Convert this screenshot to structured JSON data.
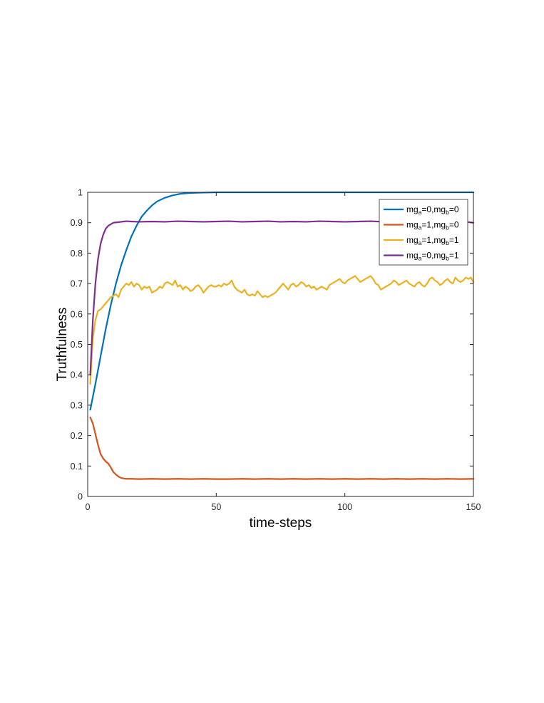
{
  "chart_data": {
    "type": "line",
    "title": "",
    "xlabel": "time-steps",
    "ylabel": "Truthfulness",
    "xlim": [
      0,
      150
    ],
    "ylim": [
      0,
      1
    ],
    "xticks": [
      0,
      50,
      100,
      150
    ],
    "yticks": [
      0,
      0.1,
      0.2,
      0.3,
      0.4,
      0.5,
      0.6,
      0.7,
      0.8,
      0.9,
      1
    ],
    "grid": false,
    "legend_position": "top-right",
    "series": [
      {
        "name": "mg_a=0,mg_b=0",
        "label_parts": [
          [
            "mg",
            ""
          ],
          [
            "a",
            "sub"
          ],
          [
            "=0,mg",
            ""
          ],
          [
            "b",
            "sub"
          ],
          [
            "=0",
            ""
          ]
        ],
        "color": "#0072BD",
        "x": [
          1,
          3,
          5,
          7,
          9,
          11,
          13,
          15,
          17,
          19,
          21,
          23,
          25,
          27,
          30,
          33,
          36,
          40,
          45,
          50,
          60,
          70,
          80,
          100,
          120,
          150
        ],
        "y": [
          0.285,
          0.37,
          0.46,
          0.55,
          0.63,
          0.7,
          0.76,
          0.81,
          0.855,
          0.89,
          0.92,
          0.94,
          0.957,
          0.97,
          0.982,
          0.99,
          0.995,
          0.998,
          0.999,
          1.0,
          1.0,
          1.0,
          1.0,
          1.0,
          1.0,
          1.0
        ]
      },
      {
        "name": "mg_a=1,mg_b=0",
        "label_parts": [
          [
            "mg",
            ""
          ],
          [
            "a",
            "sub"
          ],
          [
            "=1,mg",
            ""
          ],
          [
            "b",
            "sub"
          ],
          [
            "=0",
            ""
          ]
        ],
        "color": "#D95319",
        "x": [
          1,
          2,
          3,
          4,
          5,
          6,
          7,
          8,
          9,
          10,
          11,
          12,
          13,
          14,
          15,
          17,
          20,
          25,
          30,
          35,
          40,
          45,
          50,
          55,
          60,
          65,
          70,
          75,
          80,
          85,
          90,
          95,
          100,
          105,
          110,
          115,
          120,
          125,
          130,
          135,
          140,
          145,
          150
        ],
        "y": [
          0.26,
          0.24,
          0.205,
          0.17,
          0.14,
          0.125,
          0.115,
          0.108,
          0.095,
          0.08,
          0.072,
          0.065,
          0.061,
          0.059,
          0.058,
          0.058,
          0.057,
          0.058,
          0.057,
          0.058,
          0.057,
          0.058,
          0.057,
          0.057,
          0.058,
          0.057,
          0.058,
          0.057,
          0.058,
          0.057,
          0.058,
          0.057,
          0.058,
          0.057,
          0.058,
          0.057,
          0.058,
          0.057,
          0.058,
          0.057,
          0.058,
          0.057,
          0.058
        ]
      },
      {
        "name": "mg_a=1,mg_b=1",
        "label_parts": [
          [
            "mg",
            ""
          ],
          [
            "a",
            "sub"
          ],
          [
            "=1,mg",
            ""
          ],
          [
            "b",
            "sub"
          ],
          [
            "=1",
            ""
          ]
        ],
        "color": "#EDB120",
        "x": [
          1,
          2,
          3,
          4,
          5,
          6,
          7,
          8,
          9,
          10,
          11,
          12,
          13,
          14,
          15,
          16,
          17,
          18,
          19,
          20,
          21,
          22,
          23,
          24,
          25,
          26,
          27,
          28,
          29,
          30,
          31,
          32,
          33,
          34,
          35,
          36,
          37,
          38,
          39,
          40,
          41,
          42,
          43,
          44,
          45,
          46,
          47,
          48,
          49,
          50,
          51,
          52,
          53,
          54,
          55,
          56,
          57,
          58,
          59,
          60,
          61,
          62,
          63,
          64,
          65,
          66,
          67,
          68,
          69,
          70,
          71,
          72,
          73,
          74,
          75,
          76,
          77,
          78,
          79,
          80,
          81,
          82,
          83,
          84,
          85,
          86,
          87,
          88,
          89,
          90,
          91,
          92,
          93,
          94,
          95,
          96,
          97,
          98,
          99,
          100,
          101,
          102,
          103,
          104,
          105,
          106,
          107,
          108,
          109,
          110,
          111,
          112,
          113,
          114,
          115,
          116,
          117,
          118,
          119,
          120,
          121,
          122,
          123,
          124,
          125,
          126,
          127,
          128,
          129,
          130,
          131,
          132,
          133,
          134,
          135,
          136,
          137,
          138,
          139,
          140,
          141,
          142,
          143,
          144,
          145,
          146,
          147,
          148,
          149,
          150
        ],
        "y": [
          0.37,
          0.52,
          0.58,
          0.61,
          0.615,
          0.625,
          0.635,
          0.645,
          0.655,
          0.66,
          0.665,
          0.655,
          0.68,
          0.69,
          0.7,
          0.695,
          0.705,
          0.69,
          0.7,
          0.695,
          0.68,
          0.69,
          0.685,
          0.69,
          0.67,
          0.675,
          0.68,
          0.69,
          0.685,
          0.7,
          0.705,
          0.7,
          0.695,
          0.71,
          0.69,
          0.695,
          0.68,
          0.69,
          0.685,
          0.675,
          0.68,
          0.69,
          0.695,
          0.685,
          0.67,
          0.68,
          0.69,
          0.695,
          0.69,
          0.69,
          0.695,
          0.69,
          0.7,
          0.695,
          0.7,
          0.71,
          0.69,
          0.68,
          0.675,
          0.67,
          0.68,
          0.665,
          0.66,
          0.665,
          0.66,
          0.675,
          0.665,
          0.655,
          0.66,
          0.655,
          0.66,
          0.665,
          0.67,
          0.68,
          0.69,
          0.7,
          0.69,
          0.68,
          0.695,
          0.7,
          0.69,
          0.695,
          0.705,
          0.7,
          0.69,
          0.695,
          0.685,
          0.69,
          0.68,
          0.685,
          0.69,
          0.685,
          0.68,
          0.695,
          0.7,
          0.705,
          0.71,
          0.715,
          0.705,
          0.7,
          0.71,
          0.715,
          0.72,
          0.725,
          0.715,
          0.705,
          0.71,
          0.715,
          0.72,
          0.725,
          0.715,
          0.7,
          0.695,
          0.68,
          0.685,
          0.69,
          0.695,
          0.7,
          0.71,
          0.705,
          0.695,
          0.7,
          0.705,
          0.71,
          0.7,
          0.695,
          0.69,
          0.7,
          0.705,
          0.695,
          0.69,
          0.7,
          0.715,
          0.72,
          0.71,
          0.705,
          0.695,
          0.7,
          0.71,
          0.715,
          0.705,
          0.7,
          0.72,
          0.71,
          0.705,
          0.71,
          0.72,
          0.715,
          0.72,
          0.705
        ]
      },
      {
        "name": "mg_a=0,mg_b=1",
        "label_parts": [
          [
            "mg",
            ""
          ],
          [
            "a",
            "sub"
          ],
          [
            "=0,mg",
            ""
          ],
          [
            "b",
            "sub"
          ],
          [
            "=1",
            ""
          ]
        ],
        "color": "#7E2F8E",
        "x": [
          1,
          2,
          3,
          4,
          5,
          6,
          7,
          8,
          9,
          10,
          11,
          12,
          13,
          14,
          15,
          17,
          20,
          25,
          30,
          35,
          40,
          45,
          50,
          55,
          60,
          65,
          70,
          75,
          80,
          85,
          90,
          95,
          100,
          105,
          110,
          115,
          120,
          125,
          130,
          135,
          140,
          145,
          150
        ],
        "y": [
          0.4,
          0.58,
          0.7,
          0.78,
          0.83,
          0.86,
          0.88,
          0.89,
          0.895,
          0.9,
          0.901,
          0.902,
          0.903,
          0.904,
          0.905,
          0.904,
          0.903,
          0.904,
          0.903,
          0.905,
          0.904,
          0.903,
          0.904,
          0.905,
          0.903,
          0.904,
          0.905,
          0.903,
          0.904,
          0.903,
          0.905,
          0.904,
          0.903,
          0.904,
          0.905,
          0.903,
          0.904,
          0.905,
          0.903,
          0.904,
          0.903,
          0.905,
          0.9
        ]
      }
    ]
  }
}
